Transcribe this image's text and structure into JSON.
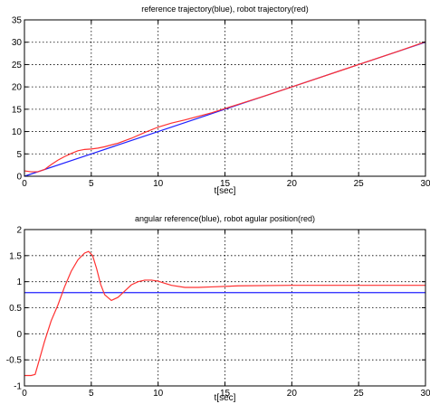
{
  "chart_data": [
    {
      "type": "line",
      "title": "reference trajectory(blue), robot trajectory(red)",
      "xlabel": "t[sec]",
      "ylabel": "",
      "xlim": [
        0,
        30
      ],
      "ylim": [
        0,
        35
      ],
      "xticks": [
        0,
        5,
        10,
        15,
        20,
        25,
        30
      ],
      "yticks": [
        0,
        5,
        10,
        15,
        20,
        25,
        30,
        35
      ],
      "grid": true,
      "series": [
        {
          "color": "#2020ff",
          "x": [
            0,
            5,
            10,
            15,
            20,
            25,
            30
          ],
          "values": [
            0,
            5,
            10,
            15,
            20,
            25,
            30
          ]
        },
        {
          "color": "#ff3030",
          "x": [
            0,
            0.5,
            1,
            1.5,
            2,
            2.5,
            3,
            3.5,
            4,
            4.5,
            5,
            5.5,
            6,
            7,
            8,
            9,
            10,
            11,
            12,
            14,
            16,
            18,
            20,
            22,
            24,
            26,
            28,
            30
          ],
          "values": [
            1.2,
            1.0,
            1.0,
            1.5,
            2.6,
            3.6,
            4.4,
            5.1,
            5.7,
            6.0,
            6.1,
            6.3,
            6.6,
            7.4,
            8.5,
            9.8,
            11.0,
            11.9,
            12.6,
            14.2,
            16.1,
            18.0,
            20.0,
            22.0,
            24.0,
            26.0,
            28.0,
            30.1
          ]
        }
      ]
    },
    {
      "type": "line",
      "title": "angular reference(blue), robot agular position(red)",
      "xlabel": "t[sec]",
      "ylabel": "",
      "xlim": [
        0,
        30
      ],
      "ylim": [
        -1,
        2
      ],
      "xticks": [
        0,
        5,
        10,
        15,
        20,
        25,
        30
      ],
      "yticks": [
        -1,
        -0.5,
        0,
        0.5,
        1,
        1.5,
        2
      ],
      "grid": true,
      "series": [
        {
          "color": "#2020ff",
          "x": [
            0,
            30
          ],
          "values": [
            0.79,
            0.79
          ]
        },
        {
          "color": "#ff3030",
          "x": [
            0,
            0.5,
            0.8,
            1,
            1.5,
            2,
            2.5,
            3,
            3.5,
            4,
            4.5,
            4.8,
            5.1,
            5.4,
            5.7,
            6,
            6.5,
            7,
            7.5,
            8,
            8.5,
            9,
            9.5,
            10,
            10.5,
            11,
            12,
            13,
            14,
            16,
            20,
            25,
            30
          ],
          "values": [
            -0.8,
            -0.8,
            -0.78,
            -0.6,
            -0.15,
            0.25,
            0.55,
            0.9,
            1.2,
            1.42,
            1.55,
            1.58,
            1.5,
            1.25,
            0.95,
            0.75,
            0.64,
            0.7,
            0.82,
            0.94,
            1.0,
            1.03,
            1.03,
            1.01,
            0.97,
            0.93,
            0.89,
            0.89,
            0.9,
            0.92,
            0.93,
            0.93,
            0.93
          ]
        }
      ]
    }
  ]
}
